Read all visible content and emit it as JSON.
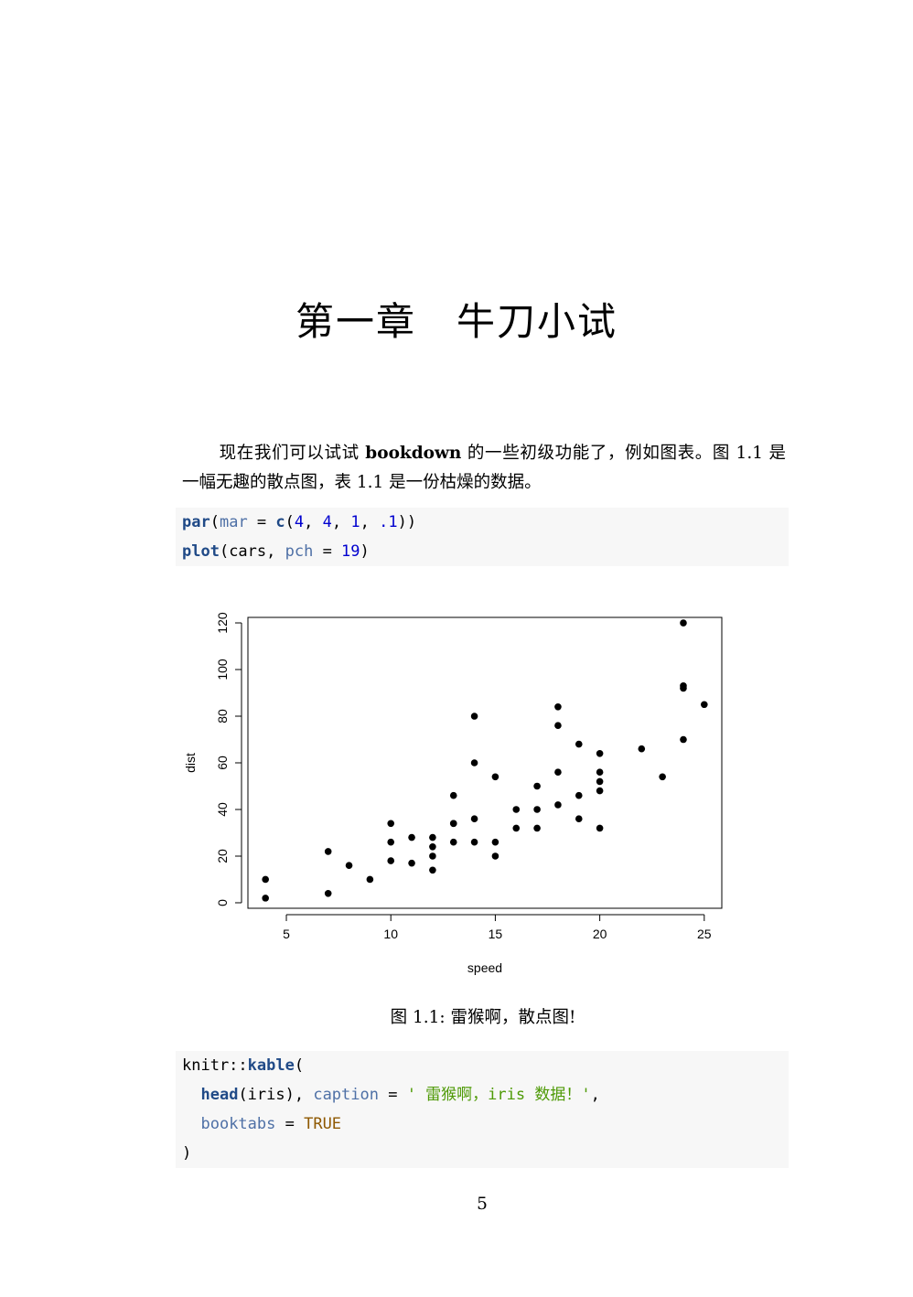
{
  "chapter": {
    "label": "第一章",
    "title": "牛刀小试"
  },
  "paragraph": {
    "part1": "现在我们可以试试 ",
    "bold": "bookdown",
    "part2": " 的一些初级功能了，例如图表。图 1.1 是一幅无趣的散点图，表 1.1 是一份枯燥的数据。"
  },
  "code1": {
    "line1": {
      "fn": "par",
      "open": "(",
      "arg": "mar",
      "eq": " = ",
      "fn2": "c",
      "open2": "(",
      "n1": "4",
      "sep1": ", ",
      "n2": "4",
      "sep2": ", ",
      "n3": "1",
      "sep3": ", ",
      "n4": ".1",
      "close": "))"
    },
    "line2": {
      "fn": "plot",
      "open": "(cars, ",
      "arg": "pch",
      "eq": " = ",
      "n1": "19",
      "close": ")"
    }
  },
  "chart_data": {
    "type": "scatter",
    "title": "",
    "xlabel": "speed",
    "ylabel": "dist",
    "xlim": [
      3.16,
      25.84
    ],
    "ylim": [
      -2.36,
      122.36
    ],
    "xticks": [
      5,
      10,
      15,
      20,
      25
    ],
    "yticks": [
      0,
      20,
      40,
      60,
      80,
      100,
      120
    ],
    "grid": false,
    "points": [
      [
        4,
        2
      ],
      [
        4,
        10
      ],
      [
        7,
        4
      ],
      [
        7,
        22
      ],
      [
        8,
        16
      ],
      [
        9,
        10
      ],
      [
        10,
        18
      ],
      [
        10,
        26
      ],
      [
        10,
        34
      ],
      [
        11,
        17
      ],
      [
        11,
        28
      ],
      [
        12,
        14
      ],
      [
        12,
        20
      ],
      [
        12,
        24
      ],
      [
        12,
        28
      ],
      [
        13,
        26
      ],
      [
        13,
        34
      ],
      [
        13,
        34
      ],
      [
        13,
        46
      ],
      [
        14,
        26
      ],
      [
        14,
        36
      ],
      [
        14,
        60
      ],
      [
        14,
        80
      ],
      [
        15,
        20
      ],
      [
        15,
        26
      ],
      [
        15,
        54
      ],
      [
        16,
        32
      ],
      [
        16,
        40
      ],
      [
        17,
        32
      ],
      [
        17,
        40
      ],
      [
        17,
        50
      ],
      [
        18,
        42
      ],
      [
        18,
        56
      ],
      [
        18,
        76
      ],
      [
        18,
        84
      ],
      [
        19,
        36
      ],
      [
        19,
        46
      ],
      [
        19,
        68
      ],
      [
        20,
        32
      ],
      [
        20,
        48
      ],
      [
        20,
        52
      ],
      [
        20,
        56
      ],
      [
        20,
        64
      ],
      [
        22,
        66
      ],
      [
        23,
        54
      ],
      [
        24,
        70
      ],
      [
        24,
        92
      ],
      [
        24,
        93
      ],
      [
        24,
        120
      ],
      [
        25,
        85
      ]
    ]
  },
  "figure_caption": "图 1.1: 雷猴啊，散点图!",
  "code2": {
    "line1": {
      "prefix": "knitr::",
      "fn": "kable",
      "open": "("
    },
    "line2": {
      "indent": "  ",
      "fn": "head",
      "mid": "(iris), ",
      "arg": "caption",
      "eq": " = ",
      "str": "' 雷猴啊，iris 数据！'",
      "end": ","
    },
    "line3": {
      "indent": "  ",
      "arg": "booktabs",
      "eq": " = ",
      "kw": "TRUE"
    },
    "line4": {
      "close": ")"
    }
  },
  "page_number": "5"
}
